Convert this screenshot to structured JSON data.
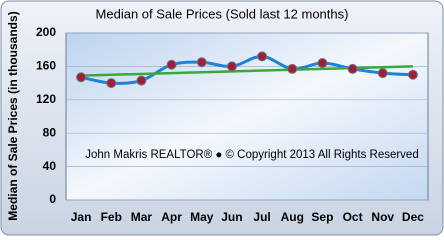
{
  "chart_data": {
    "type": "line",
    "title": "Median of Sale Prices (Sold last 12 months)",
    "y_label": "Median of Sale Prices (in thousands)",
    "annotation": "John Makris REALTOR®  ●  © Copyright 2013 All Rights Reserved",
    "categories": [
      "Jan",
      "Feb",
      "Mar",
      "Apr",
      "May",
      "Jun",
      "Jul",
      "Aug",
      "Sep",
      "Oct",
      "Nov",
      "Dec"
    ],
    "series": [
      {
        "color": "#1f82d6",
        "marker_color": "#9c1f3c",
        "values": [
          147,
          140,
          143,
          162,
          165,
          160,
          172,
          157,
          164,
          157,
          152,
          150
        ]
      }
    ],
    "trendline": {
      "color": "#3aa83a",
      "values": [
        149,
        160
      ]
    },
    "ylim": [
      0,
      200
    ],
    "yticks": [
      0,
      40,
      80,
      120,
      160,
      200
    ],
    "grid": true
  }
}
